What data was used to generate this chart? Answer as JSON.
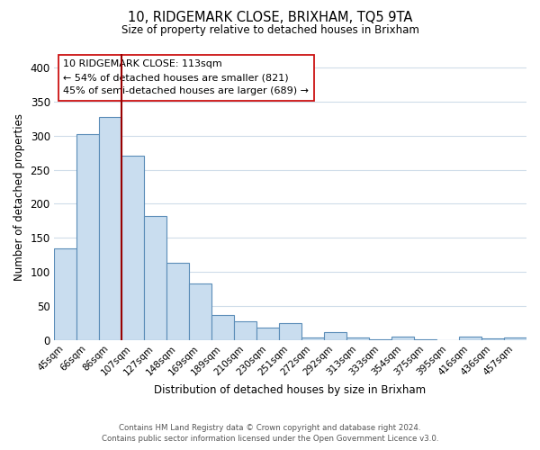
{
  "title": "10, RIDGEMARK CLOSE, BRIXHAM, TQ5 9TA",
  "subtitle": "Size of property relative to detached houses in Brixham",
  "xlabel": "Distribution of detached houses by size in Brixham",
  "ylabel": "Number of detached properties",
  "categories": [
    "45sqm",
    "66sqm",
    "86sqm",
    "107sqm",
    "127sqm",
    "148sqm",
    "169sqm",
    "189sqm",
    "210sqm",
    "230sqm",
    "251sqm",
    "272sqm",
    "292sqm",
    "313sqm",
    "333sqm",
    "354sqm",
    "375sqm",
    "395sqm",
    "416sqm",
    "436sqm",
    "457sqm"
  ],
  "bar_values": [
    135,
    302,
    327,
    270,
    182,
    113,
    83,
    37,
    27,
    18,
    25,
    4,
    11,
    4,
    1,
    5,
    1,
    0,
    5,
    2,
    4
  ],
  "bar_color": "#c9ddef",
  "bar_edge_color": "#5b8db8",
  "vline_index": 2.5,
  "vline_color": "#990000",
  "ylim_max": 420,
  "yticks": [
    0,
    50,
    100,
    150,
    200,
    250,
    300,
    350,
    400
  ],
  "annotation_title": "10 RIDGEMARK CLOSE: 113sqm",
  "annotation_line1": "← 54% of detached houses are smaller (821)",
  "annotation_line2": "45% of semi-detached houses are larger (689) →",
  "footer_line1": "Contains HM Land Registry data © Crown copyright and database right 2024.",
  "footer_line2": "Contains public sector information licensed under the Open Government Licence v3.0.",
  "background_color": "#ffffff",
  "grid_color": "#cfdce9"
}
